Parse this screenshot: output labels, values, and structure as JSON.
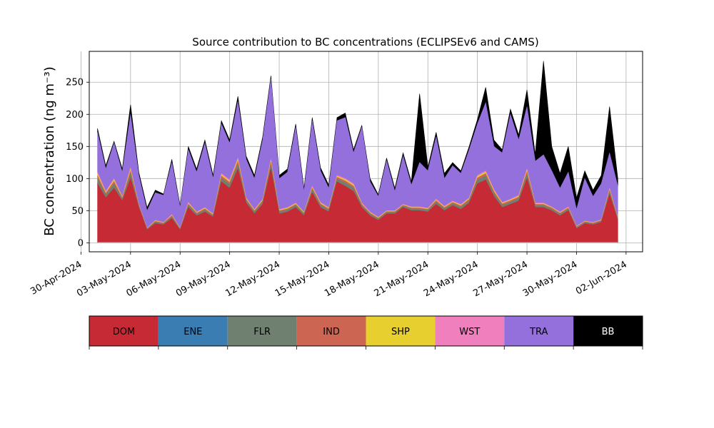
{
  "chart_data": {
    "type": "area",
    "stacked": true,
    "title": "Source contribution to BC concentrations (ECLIPSEv6 and CAMS)",
    "ylabel": "BC concentration (ng m⁻³)",
    "xlabel": "",
    "x_range": [
      "2024-04-30T12:00",
      "2024-06-03T00:00"
    ],
    "ylim": [
      -14,
      298
    ],
    "grid": true,
    "x_ticks": [
      "30-Apr-2024",
      "03-May-2024",
      "06-May-2024",
      "09-May-2024",
      "12-May-2024",
      "15-May-2024",
      "18-May-2024",
      "21-May-2024",
      "24-May-2024",
      "27-May-2024",
      "30-May-2024",
      "02-Jun-2024"
    ],
    "y_ticks": [
      0,
      50,
      100,
      150,
      200,
      250
    ],
    "legend_position": "bottom",
    "series": [
      {
        "name": "DOM",
        "color": "#c52a35"
      },
      {
        "name": "ENE",
        "color": "#3a7db3"
      },
      {
        "name": "FLR",
        "color": "#6f8070"
      },
      {
        "name": "IND",
        "color": "#cc6653"
      },
      {
        "name": "SHP",
        "color": "#e6cf2e"
      },
      {
        "name": "WST",
        "color": "#f07fbd"
      },
      {
        "name": "TRA",
        "color": "#9370db"
      },
      {
        "name": "BB",
        "color": "#000000"
      }
    ],
    "x": [
      "2024-05-01",
      "2024-05-01T12:00",
      "2024-05-02",
      "2024-05-02T12:00",
      "2024-05-03",
      "2024-05-03T12:00",
      "2024-05-04",
      "2024-05-04T12:00",
      "2024-05-05",
      "2024-05-05T12:00",
      "2024-05-06",
      "2024-05-06T12:00",
      "2024-05-07",
      "2024-05-07T12:00",
      "2024-05-08",
      "2024-05-08T12:00",
      "2024-05-09",
      "2024-05-09T12:00",
      "2024-05-10",
      "2024-05-10T12:00",
      "2024-05-11",
      "2024-05-11T12:00",
      "2024-05-12",
      "2024-05-12T12:00",
      "2024-05-13",
      "2024-05-13T12:00",
      "2024-05-14",
      "2024-05-14T12:00",
      "2024-05-15",
      "2024-05-15T12:00",
      "2024-05-16",
      "2024-05-16T12:00",
      "2024-05-17",
      "2024-05-17T12:00",
      "2024-05-18",
      "2024-05-18T12:00",
      "2024-05-19",
      "2024-05-19T12:00",
      "2024-05-20",
      "2024-05-20T12:00",
      "2024-05-21",
      "2024-05-21T12:00",
      "2024-05-22",
      "2024-05-22T12:00",
      "2024-05-23",
      "2024-05-23T12:00",
      "2024-05-24",
      "2024-05-24T12:00",
      "2024-05-25",
      "2024-05-25T12:00",
      "2024-05-26",
      "2024-05-26T12:00",
      "2024-05-27",
      "2024-05-27T12:00",
      "2024-05-28",
      "2024-05-28T12:00",
      "2024-05-29",
      "2024-05-29T12:00",
      "2024-05-30",
      "2024-05-30T12:00",
      "2024-05-31",
      "2024-05-31T12:00",
      "2024-06-01",
      "2024-06-01T12:00"
    ],
    "component_totals": {
      "DOM": [
        92,
        70,
        85,
        65,
        100,
        55,
        20,
        30,
        28,
        38,
        20,
        55,
        42,
        48,
        40,
        95,
        85,
        115,
        62,
        45,
        60,
        115,
        45,
        48,
        55,
        42,
        78,
        55,
        48,
        95,
        88,
        80,
        55,
        42,
        35,
        45,
        45,
        55,
        50,
        50,
        48,
        60,
        50,
        58,
        52,
        62,
        92,
        98,
        72,
        55,
        60,
        65,
        100,
        55,
        55,
        50,
        42,
        50,
        22,
        30,
        28,
        32,
        75,
        35
      ],
      "DOM+FLR+IND+SHP+WST": [
        110,
        80,
        100,
        72,
        117,
        60,
        23,
        35,
        32,
        44,
        23,
        63,
        48,
        55,
        45,
        108,
        98,
        132,
        70,
        52,
        68,
        130,
        52,
        55,
        62,
        48,
        88,
        63,
        55,
        105,
        100,
        92,
        62,
        48,
        40,
        50,
        50,
        60,
        56,
        56,
        54,
        68,
        57,
        65,
        60,
        70,
        105,
        112,
        83,
        63,
        68,
        74,
        115,
        62,
        62,
        56,
        48,
        56,
        26,
        34,
        32,
        36,
        85,
        40
      ],
      "TRA_top": [
        172,
        115,
        155,
        110,
        200,
        105,
        50,
        78,
        74,
        125,
        55,
        145,
        110,
        155,
        100,
        185,
        155,
        220,
        130,
        100,
        160,
        255,
        100,
        110,
        180,
        80,
        190,
        112,
        85,
        190,
        195,
        140,
        180,
        95,
        72,
        128,
        80,
        135,
        90,
        125,
        112,
        165,
        100,
        120,
        108,
        145,
        185,
        218,
        150,
        140,
        200,
        160,
        212,
        127,
        137,
        112,
        85,
        110,
        52,
        100,
        72,
        92,
        140,
        88
      ],
      "BB_top": [
        178,
        120,
        158,
        115,
        215,
        110,
        55,
        82,
        76,
        130,
        58,
        150,
        115,
        160,
        105,
        190,
        160,
        228,
        135,
        105,
        165,
        260,
        105,
        115,
        185,
        85,
        195,
        117,
        90,
        195,
        202,
        145,
        183,
        100,
        75,
        132,
        85,
        140,
        95,
        232,
        118,
        172,
        108,
        125,
        112,
        150,
        192,
        242,
        160,
        145,
        208,
        168,
        238,
        138,
        283,
        150,
        108,
        150,
        70,
        112,
        82,
        105,
        212,
        100
      ]
    }
  }
}
